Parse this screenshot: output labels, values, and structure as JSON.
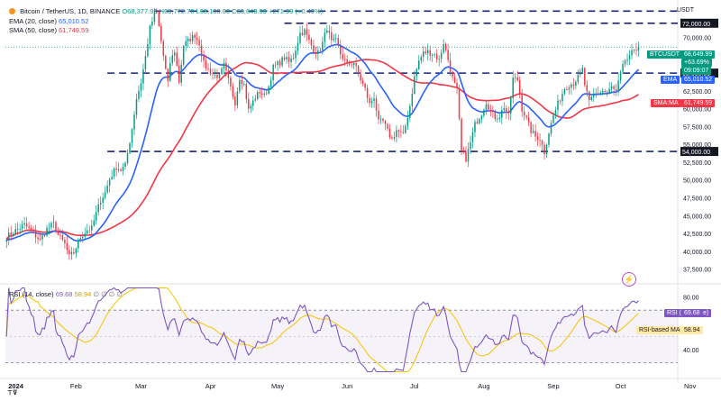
{
  "chart_data": {
    "type": "candlestick",
    "header": {
      "symbol": "Bitcoin / TetherUS, 1D, BINANCE",
      "open": "O68,377.99",
      "high": "H68,772.70",
      "low": "L68,100.00",
      "close": "C68,649.99",
      "change": "+271.99 (+0.40%)"
    },
    "indicators": [
      {
        "label": "EMA (20, close)",
        "value": "65,010.52",
        "color": "#2962ff"
      },
      {
        "label": "SMA (50, close)",
        "value": "61,749.59",
        "color": "#f23645"
      }
    ],
    "currency": "USDT",
    "y_ticks": [
      "72,000.00",
      "70,000.00",
      "67,500.00",
      "65,000.00",
      "62,500.00",
      "60,000.00",
      "57,500.00",
      "55,000.00",
      "54,000.00",
      "52,500.00",
      "50,000.00",
      "47,500.00",
      "45,000.00",
      "42,500.00",
      "40,000.00",
      "37,500.00"
    ],
    "ylim": [
      35800,
      74500
    ],
    "x_ticks": [
      "2024",
      "Feb",
      "Mar",
      "Apr",
      "May",
      "Jun",
      "Jul",
      "Aug",
      "Sep",
      "Oct",
      "Nov"
    ],
    "levels": [
      {
        "value": 73700,
        "label": ""
      },
      {
        "value": 72000,
        "label": "72,000.00"
      },
      {
        "value": 65000,
        "label": "65,000.00"
      },
      {
        "value": 54000,
        "label": "54,000.00"
      }
    ],
    "price_tags": [
      {
        "label": "BTCUSDT",
        "value": "68,649.99",
        "sub1": "+63.69%",
        "sub2": "09:09:07",
        "color": "#089981"
      },
      {
        "label": "EMA",
        "value": "65,010.52",
        "color": "#2962ff"
      },
      {
        "label": "SMA:MA",
        "value": "61,749.59",
        "color": "#f23645"
      }
    ],
    "rsi": {
      "label": "RSI (14, close)",
      "value": "69.68",
      "ma_label": "RSI-based MA",
      "ma_value": "58.94",
      "flags": "∅ ∅ ∅ ∅",
      "y_ticks": [
        "80.00",
        "40.00"
      ],
      "bands": [
        70,
        30
      ],
      "ylim": [
        22,
        88
      ]
    },
    "price_path": [
      [
        0,
        42000
      ],
      [
        4,
        42900
      ],
      [
        8,
        43700
      ],
      [
        12,
        42500
      ],
      [
        15,
        41500
      ],
      [
        18,
        43100
      ],
      [
        21,
        43800
      ],
      [
        23,
        42300
      ],
      [
        26,
        41000
      ],
      [
        28,
        39200
      ],
      [
        30,
        39800
      ],
      [
        33,
        42000
      ],
      [
        36,
        43000
      ],
      [
        38,
        43200
      ],
      [
        40,
        45300
      ],
      [
        42,
        47200
      ],
      [
        44,
        48200
      ],
      [
        46,
        50200
      ],
      [
        49,
        51800
      ],
      [
        51,
        51400
      ],
      [
        53,
        52000
      ],
      [
        56,
        57200
      ],
      [
        58,
        61500
      ],
      [
        60,
        63700
      ],
      [
        62,
        67300
      ],
      [
        64,
        71300
      ],
      [
        66,
        73200
      ],
      [
        67,
        73400
      ],
      [
        68,
        71500
      ],
      [
        70,
        67400
      ],
      [
        72,
        63500
      ],
      [
        73,
        66500
      ],
      [
        75,
        68100
      ],
      [
        77,
        63800
      ],
      [
        79,
        68900
      ],
      [
        82,
        69800
      ],
      [
        84,
        70300
      ],
      [
        86,
        69200
      ],
      [
        88,
        66300
      ],
      [
        90,
        65500
      ],
      [
        92,
        64800
      ],
      [
        95,
        64500
      ],
      [
        97,
        66100
      ],
      [
        100,
        62900
      ],
      [
        102,
        60900
      ],
      [
        104,
        64400
      ],
      [
        106,
        63400
      ],
      [
        108,
        59800
      ],
      [
        111,
        61600
      ],
      [
        113,
        62400
      ],
      [
        115,
        61800
      ],
      [
        117,
        63100
      ],
      [
        119,
        65800
      ],
      [
        122,
        66500
      ],
      [
        124,
        67200
      ],
      [
        126,
        66500
      ],
      [
        128,
        67300
      ],
      [
        131,
        70600
      ],
      [
        133,
        70900
      ],
      [
        135,
        69500
      ],
      [
        137,
        68300
      ],
      [
        139,
        67800
      ],
      [
        141,
        69200
      ],
      [
        143,
        71400
      ],
      [
        145,
        69300
      ],
      [
        147,
        69500
      ],
      [
        149,
        67700
      ],
      [
        152,
        66200
      ],
      [
        155,
        66500
      ],
      [
        157,
        64800
      ],
      [
        160,
        62700
      ],
      [
        162,
        60600
      ],
      [
        164,
        61700
      ],
      [
        166,
        58100
      ],
      [
        168,
        58200
      ],
      [
        170,
        56800
      ],
      [
        172,
        55700
      ],
      [
        174,
        57000
      ],
      [
        177,
        56200
      ],
      [
        180,
        60400
      ],
      [
        182,
        64400
      ],
      [
        184,
        66700
      ],
      [
        186,
        67800
      ],
      [
        188,
        68000
      ],
      [
        191,
        67600
      ],
      [
        193,
        66800
      ],
      [
        195,
        69300
      ],
      [
        197,
        66900
      ],
      [
        199,
        64200
      ],
      [
        201,
        62500
      ],
      [
        203,
        54000
      ],
      [
        205,
        53000
      ],
      [
        207,
        55200
      ],
      [
        209,
        57800
      ],
      [
        212,
        59400
      ],
      [
        214,
        61000
      ],
      [
        216,
        59600
      ],
      [
        218,
        58800
      ],
      [
        220,
        59000
      ],
      [
        222,
        60300
      ],
      [
        224,
        58900
      ],
      [
        226,
        64200
      ],
      [
        228,
        64100
      ],
      [
        230,
        60000
      ],
      [
        232,
        58500
      ],
      [
        234,
        56900
      ],
      [
        236,
        56100
      ],
      [
        238,
        55800
      ],
      [
        240,
        53900
      ],
      [
        242,
        56700
      ],
      [
        244,
        59000
      ],
      [
        246,
        60700
      ],
      [
        249,
        62900
      ],
      [
        251,
        63400
      ],
      [
        253,
        63600
      ],
      [
        255,
        64400
      ],
      [
        257,
        65500
      ],
      [
        258,
        63400
      ],
      [
        260,
        60800
      ],
      [
        262,
        62000
      ],
      [
        264,
        62200
      ],
      [
        266,
        62500
      ],
      [
        268,
        62200
      ],
      [
        270,
        63000
      ],
      [
        272,
        62300
      ],
      [
        274,
        64900
      ],
      [
        276,
        66800
      ],
      [
        278,
        67100
      ],
      [
        280,
        68400
      ],
      [
        282,
        68650
      ]
    ]
  }
}
